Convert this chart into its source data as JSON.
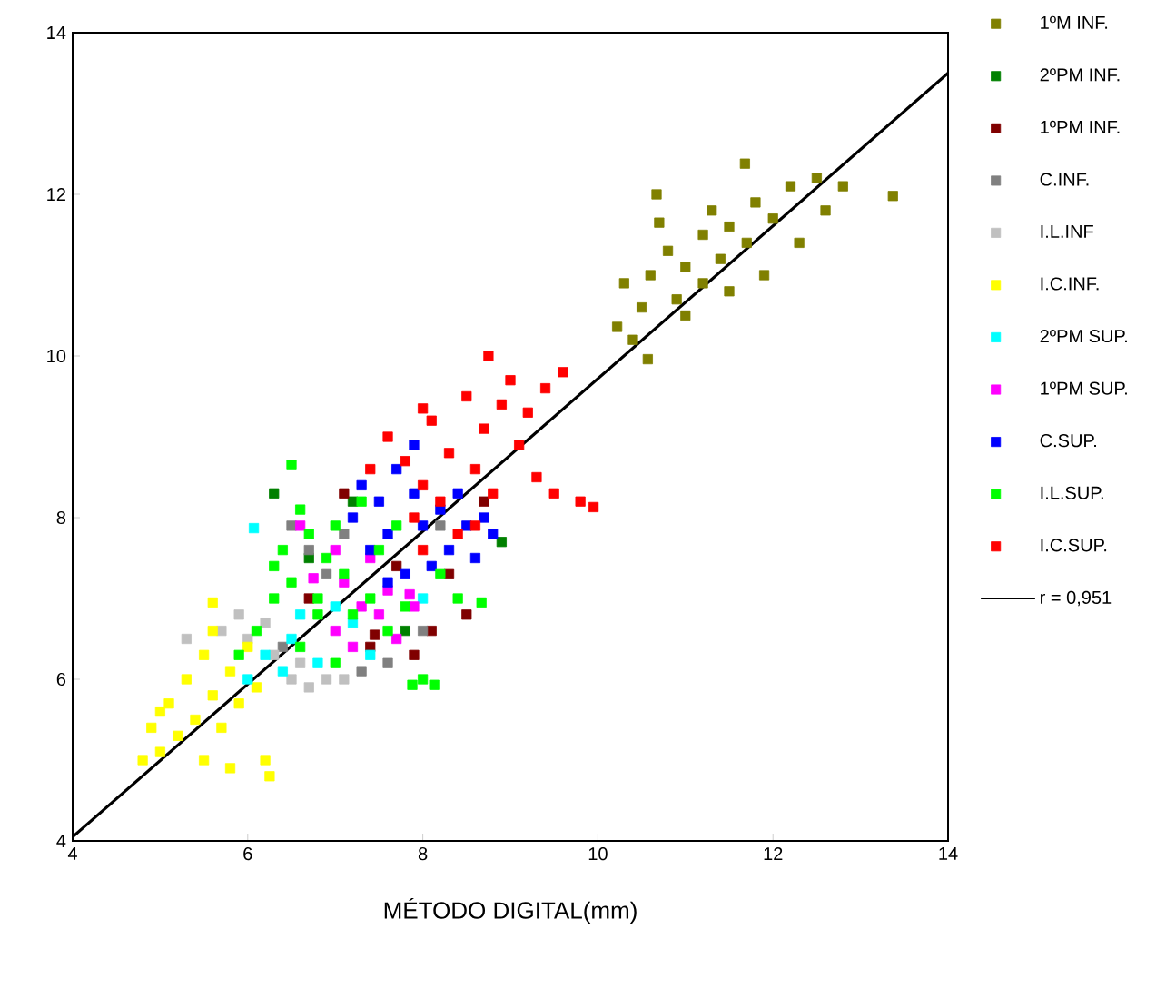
{
  "chart_data": {
    "type": "scatter",
    "xlabel": "MÉTODO DIGITAL(mm)",
    "marker": "square",
    "legend": "right",
    "xlim": [
      4,
      14
    ],
    "ylim": [
      4,
      14
    ],
    "xticks": [
      4,
      6,
      8,
      10,
      12,
      14
    ],
    "yticks": [
      4,
      6,
      8,
      10,
      12,
      14
    ],
    "series": [
      {
        "name": "1ºM INF.",
        "color": "#808000",
        "x": [
          10.22,
          10.57,
          10.3,
          10.4,
          10.5,
          10.6,
          10.67,
          10.7,
          10.8,
          10.9,
          11.0,
          11.0,
          11.2,
          11.2,
          11.3,
          11.4,
          11.5,
          11.5,
          11.68,
          11.7,
          11.8,
          11.9,
          12.0,
          12.2,
          12.3,
          12.5,
          12.6,
          12.8,
          13.37
        ],
        "values": [
          10.36,
          9.96,
          10.9,
          10.2,
          10.6,
          11.0,
          12.0,
          11.65,
          11.3,
          10.7,
          11.1,
          10.5,
          11.5,
          10.9,
          11.8,
          11.2,
          11.6,
          10.8,
          12.38,
          11.4,
          11.9,
          11.0,
          11.7,
          12.1,
          11.4,
          12.2,
          11.8,
          12.1,
          11.98
        ]
      },
      {
        "name": "2ºPM INF.",
        "color": "#008000",
        "x": [
          6.3,
          6.7,
          7.2,
          8.9,
          7.8
        ],
        "values": [
          8.3,
          7.5,
          8.2,
          7.7,
          6.6
        ]
      },
      {
        "name": "1ºPM INF.",
        "color": "#800000",
        "x": [
          6.7,
          7.1,
          7.45,
          7.7,
          7.9,
          8.1,
          8.3,
          8.5,
          8.7,
          7.4
        ],
        "values": [
          7.0,
          8.3,
          6.55,
          7.4,
          6.3,
          6.6,
          7.3,
          6.8,
          8.2,
          6.4
        ]
      },
      {
        "name": "C.INF.",
        "color": "#808080",
        "x": [
          6.5,
          6.7,
          6.9,
          7.1,
          7.3,
          7.6,
          8.0,
          8.2,
          6.4
        ],
        "values": [
          7.9,
          7.6,
          7.3,
          7.8,
          6.1,
          6.2,
          6.6,
          7.9,
          6.4
        ]
      },
      {
        "name": "I.L.INF",
        "color": "#c0c0c0",
        "x": [
          5.7,
          5.9,
          6.0,
          6.3,
          6.5,
          6.7,
          6.9,
          7.1,
          6.2,
          6.6,
          5.3
        ],
        "values": [
          6.6,
          6.8,
          6.5,
          6.3,
          6.0,
          5.9,
          6.0,
          6.0,
          6.7,
          6.2,
          6.5
        ]
      },
      {
        "name": "I.C.INF.",
        "color": "#ffff00",
        "x": [
          4.8,
          4.9,
          5.0,
          5.1,
          5.2,
          5.3,
          5.4,
          5.5,
          5.5,
          5.6,
          5.7,
          5.8,
          5.9,
          6.0,
          6.1,
          5.6,
          6.2,
          5.8,
          5.0,
          5.6,
          6.25
        ],
        "values": [
          5.0,
          5.4,
          5.1,
          5.7,
          5.3,
          6.0,
          5.5,
          5.0,
          6.3,
          5.8,
          5.4,
          6.1,
          5.7,
          6.4,
          5.9,
          6.95,
          5.0,
          4.9,
          5.6,
          6.6,
          4.8
        ]
      },
      {
        "name": "2ºPM SUP.",
        "color": "#00ffff",
        "x": [
          6.0,
          6.2,
          6.4,
          6.5,
          6.6,
          6.8,
          7.0,
          7.2,
          7.4,
          6.07,
          8.0
        ],
        "values": [
          6.0,
          6.3,
          6.1,
          6.5,
          6.8,
          6.2,
          6.9,
          6.7,
          6.3,
          7.87,
          7.0
        ]
      },
      {
        "name": "1ºPM SUP.",
        "color": "#ff00ff",
        "x": [
          6.75,
          7.0,
          7.1,
          7.2,
          7.3,
          7.4,
          7.5,
          7.6,
          7.7,
          7.85,
          7.0,
          6.6,
          7.9
        ],
        "values": [
          7.25,
          6.6,
          7.2,
          6.4,
          6.9,
          7.5,
          6.8,
          7.1,
          6.5,
          7.05,
          7.6,
          7.9,
          6.9
        ]
      },
      {
        "name": "C.SUP.",
        "color": "#0000ff",
        "x": [
          7.2,
          7.3,
          7.4,
          7.5,
          7.6,
          7.7,
          7.8,
          7.9,
          8.0,
          8.1,
          8.2,
          8.3,
          8.4,
          8.5,
          8.6,
          8.7,
          7.6,
          8.8,
          7.9
        ],
        "values": [
          8.0,
          8.4,
          7.6,
          8.2,
          7.8,
          8.6,
          7.3,
          8.9,
          7.9,
          7.4,
          8.1,
          7.6,
          8.3,
          7.9,
          7.5,
          8.0,
          7.2,
          7.8,
          8.3
        ]
      },
      {
        "name": "I.L.SUP.",
        "color": "#00ff00",
        "x": [
          5.9,
          6.1,
          6.3,
          6.4,
          6.5,
          6.6,
          6.6,
          6.7,
          6.8,
          6.9,
          7.0,
          7.0,
          7.1,
          7.2,
          7.3,
          7.4,
          7.5,
          7.6,
          7.7,
          7.8,
          8.0,
          8.2,
          8.4,
          6.3,
          6.8,
          6.5,
          8.13,
          7.88,
          8.67
        ],
        "values": [
          6.3,
          6.6,
          7.4,
          7.6,
          7.2,
          6.4,
          8.1,
          7.8,
          7.0,
          7.5,
          6.2,
          7.9,
          7.3,
          6.8,
          8.2,
          7.0,
          7.6,
          6.6,
          7.9,
          6.9,
          6.0,
          7.3,
          7.0,
          7.0,
          6.8,
          8.65,
          5.93,
          5.93,
          6.95
        ]
      },
      {
        "name": "I.C.SUP.",
        "color": "#ff0000",
        "x": [
          7.8,
          7.9,
          8.0,
          8.1,
          8.2,
          8.3,
          8.4,
          8.5,
          8.6,
          8.7,
          8.75,
          8.8,
          8.9,
          9.0,
          9.1,
          9.2,
          9.3,
          9.4,
          9.5,
          9.6,
          9.8,
          7.4,
          7.6,
          8.0,
          8.6,
          9.95,
          8.0
        ],
        "values": [
          8.7,
          8.0,
          8.4,
          9.2,
          8.2,
          8.8,
          7.8,
          9.5,
          8.6,
          9.1,
          10.0,
          8.3,
          9.4,
          9.7,
          8.9,
          9.3,
          8.5,
          9.6,
          8.3,
          9.8,
          8.2,
          8.6,
          9.0,
          7.6,
          7.9,
          8.13,
          9.35
        ]
      },
      {
        "name": "r = 0,951",
        "type": "line",
        "marker": "none",
        "color": "#000000",
        "x": [
          4,
          14
        ],
        "values": [
          4.05,
          13.5
        ]
      }
    ]
  }
}
